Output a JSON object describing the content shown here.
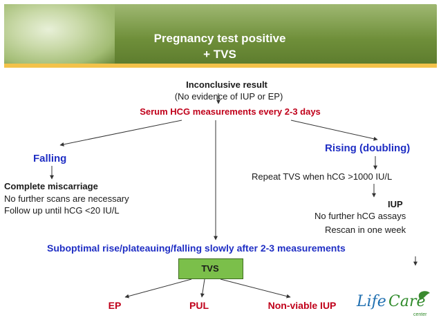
{
  "header": {
    "title_line1": "Pregnancy test positive",
    "title_line2": "+ TVS"
  },
  "top": {
    "inconclusive": "Inconclusive result",
    "no_evidence": "(No evidence of IUP or EP)",
    "serum": "Serum HCG measurements every 2-3 days"
  },
  "left_branch": {
    "falling": "Falling",
    "complete": "Complete miscarriage",
    "no_scans": "No further scans are necessary",
    "follow_up": "Follow up until hCG <20 IU/L"
  },
  "right_branch": {
    "rising": "Rising (doubling)",
    "repeat": "Repeat TVS when hCG >1000 IU/L",
    "iup": "IUP",
    "no_assays": "No further hCG assays",
    "rescan": "Rescan in one week"
  },
  "middle": {
    "suboptimal": "Suboptimal rise/plateauing/falling slowly after 2-3 measurements",
    "tvs": "TVS"
  },
  "outcomes": {
    "ep": "EP",
    "pul": "PUL",
    "nonviable": "Non-viable IUP"
  },
  "logo": {
    "text_life": "Life",
    "text_care": "Care",
    "subtitle": "center"
  },
  "colors": {
    "banner": "#6f8f3a",
    "accent": "#f3c24a",
    "red": "#c0001a",
    "blue": "#1f2ec4",
    "tvs_box": "#7bbf4a"
  }
}
